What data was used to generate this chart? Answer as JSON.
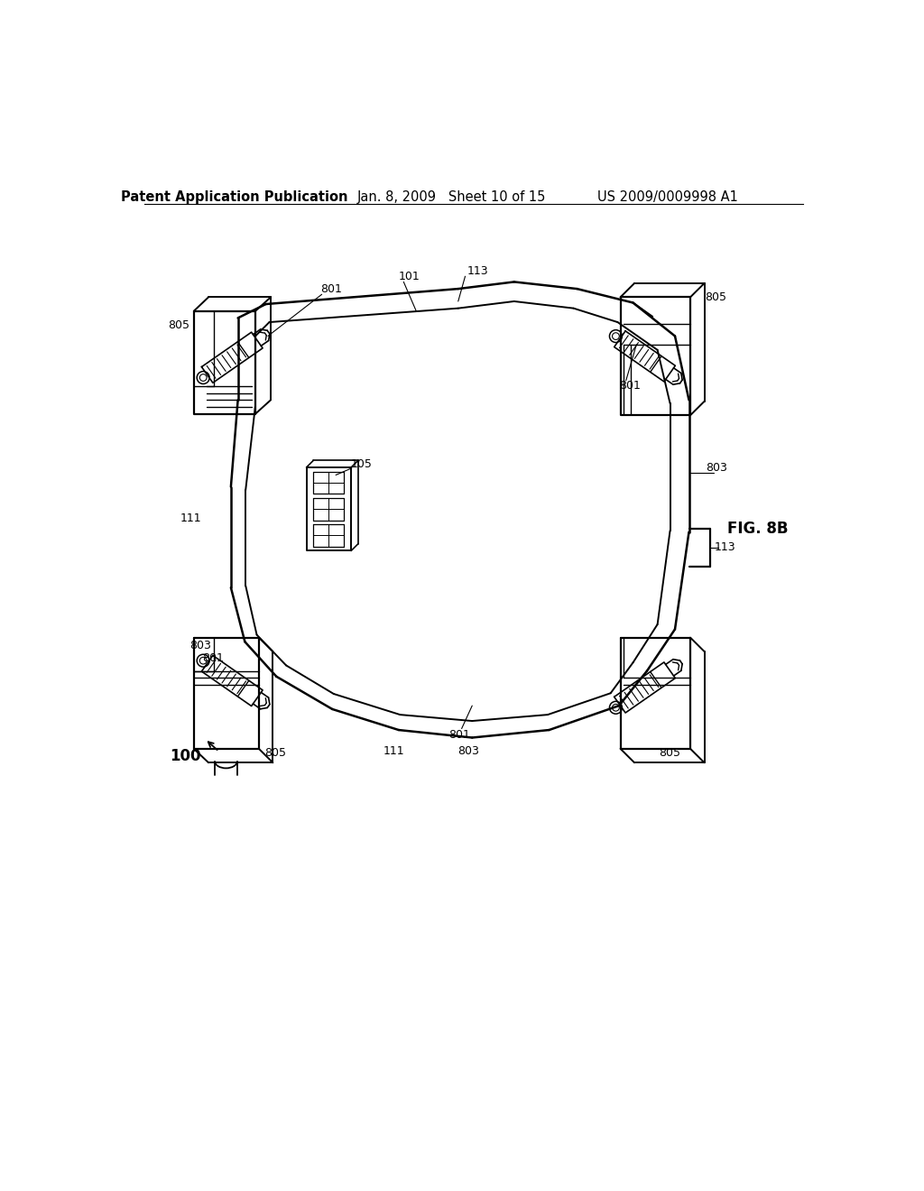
{
  "background_color": "#ffffff",
  "header_left": "Patent Application Publication",
  "header_mid": "Jan. 8, 2009   Sheet 10 of 15",
  "header_right": "US 2009/0009998 A1",
  "fig_label": "FIG. 8B",
  "main_label": "100",
  "header_fontsize": 10.5
}
